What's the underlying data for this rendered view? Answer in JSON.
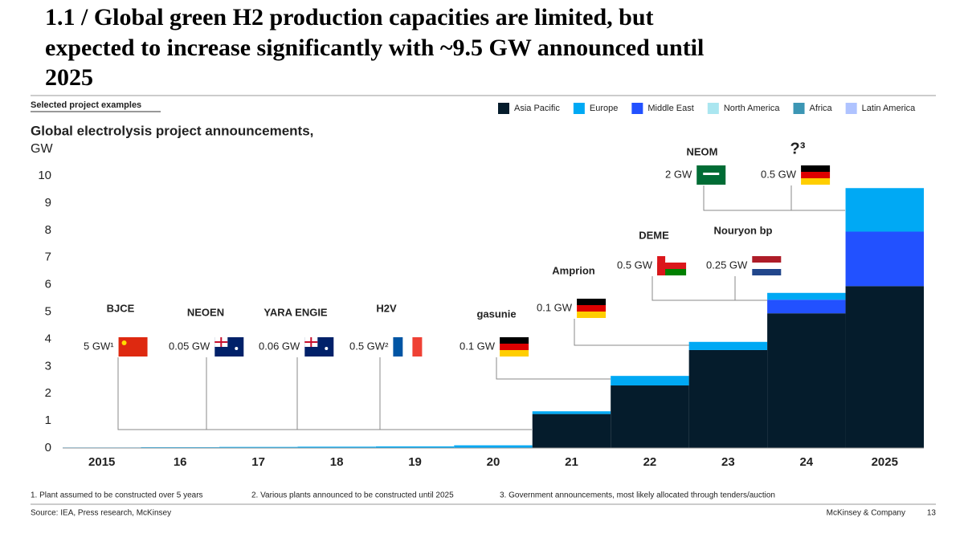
{
  "header": {
    "title": [
      "1.1 / Global green H2 production capacities are limited, but",
      "expected to increase significantly with ~9.5 GW announced until",
      "2025"
    ]
  },
  "tag": "Selected project examples",
  "chart_data": {
    "type": "bar",
    "stacked": true,
    "title": "Global electrolysis project announcements,",
    "subtitle": "GW",
    "categories": [
      "2015",
      "16",
      "17",
      "18",
      "19",
      "20",
      "21",
      "22",
      "23",
      "24",
      "2025"
    ],
    "series": [
      {
        "name": "Asia Pacific",
        "color": "#051c2c",
        "values": [
          0,
          0,
          0,
          0,
          0,
          0,
          1.25,
          2.3,
          3.6,
          4.95,
          5.95
        ]
      },
      {
        "name": "Middle East",
        "color": "#2251ff",
        "values": [
          0,
          0,
          0,
          0,
          0,
          0,
          0,
          0,
          0,
          0.5,
          2.0
        ]
      },
      {
        "name": "Europe",
        "color": "#00a9f4",
        "values": [
          0.02,
          0.03,
          0.04,
          0.05,
          0.06,
          0.1,
          0.1,
          0.35,
          0.3,
          0.25,
          1.6
        ]
      },
      {
        "name": "North America",
        "color": "#aae6f0",
        "values": [
          0,
          0,
          0,
          0,
          0,
          0,
          0,
          0,
          0,
          0,
          0
        ]
      },
      {
        "name": "Africa",
        "color": "#3c96b4",
        "values": [
          0,
          0,
          0,
          0,
          0,
          0,
          0,
          0,
          0,
          0,
          0
        ]
      },
      {
        "name": "Latin America",
        "color": "#afc3ff",
        "values": [
          0,
          0,
          0,
          0,
          0,
          0,
          0,
          0,
          0,
          0,
          0
        ]
      }
    ],
    "legend_order": [
      "Asia Pacific",
      "Europe",
      "Middle East",
      "North America",
      "Africa",
      "Latin America"
    ],
    "ylim": [
      0,
      10
    ],
    "yticks": [
      0,
      1,
      2,
      3,
      4,
      5,
      6,
      7,
      8,
      9,
      10
    ],
    "legend": "top-right",
    "annotations": [
      {
        "logo": "BJCE",
        "label": "5 GW¹"
      },
      {
        "logo": "NEOEN",
        "label": "0.05 GW"
      },
      {
        "logo": "YARA ENGIE",
        "label": "0.06 GW"
      },
      {
        "logo": "H2V",
        "label": "0.5 GW²"
      },
      {
        "logo": "gasunie",
        "label": "0.1 GW"
      },
      {
        "logo": "Amprion",
        "label": "0.1 GW"
      },
      {
        "logo": "DEME",
        "label": "0.5 GW"
      },
      {
        "logo": "Nouryon bp",
        "label": "0.25 GW"
      },
      {
        "logo": "NEOM",
        "label": "2 GW"
      },
      {
        "logo": "?³",
        "label": "0.5 GW"
      }
    ]
  },
  "footnotes": [
    "1.   Plant assumed to be constructed over 5 years",
    "2. Various plants announced to be constructed until 2025",
    "3. Government announcements, most likely allocated through tenders/auction"
  ],
  "source": "Source: IEA, Press research, McKinsey",
  "company": "McKinsey & Company",
  "page": "13"
}
